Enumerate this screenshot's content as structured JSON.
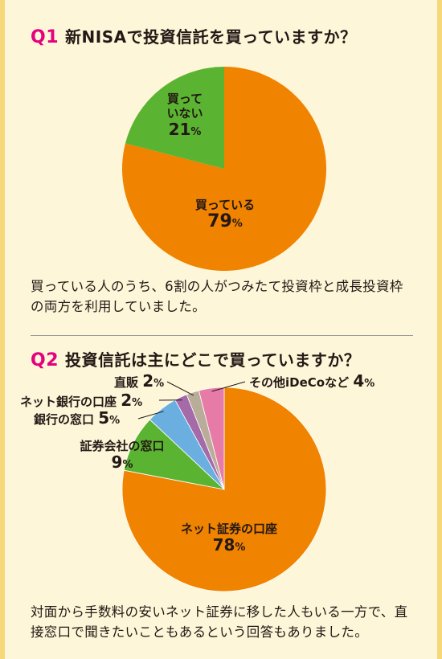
{
  "q1": {
    "number": "Q1",
    "question": "新NISAで投資信託を買っていますか？",
    "note": "買っている人のうち、6割の人がつみたて投資枠と成長投資枠の両方を利用していました。"
  },
  "q2": {
    "number": "Q2",
    "question": "投資信託は主にどこで買っていますか？",
    "note": "対面から手数料の安いネット証券に移した人もいる一方で、直接窓口で聞きたいこともあるという回答もありました。"
  },
  "chart_data": [
    {
      "type": "pie",
      "categories": [
        "買っている",
        "買っていない"
      ],
      "values": [
        79,
        21
      ],
      "labels": [
        {
          "lines": [
            "買っている"
          ],
          "value": "79",
          "unit": "%"
        },
        {
          "lines": [
            "買って",
            "いない"
          ],
          "value": "21",
          "unit": "%"
        }
      ],
      "colors": [
        "#f08300",
        "#5bb431"
      ]
    },
    {
      "type": "pie",
      "categories": [
        "ネット証券の口座",
        "証券会社の窓口",
        "銀行の窓口",
        "ネット銀行の口座",
        "直販",
        "その他iDeCoなど"
      ],
      "values": [
        78,
        9,
        5,
        2,
        2,
        4
      ],
      "labels": [
        {
          "lines": [
            "ネット証券の口座"
          ],
          "value": "78",
          "unit": "%"
        },
        {
          "lines": [
            "証券会社の窓口"
          ],
          "value": "9",
          "unit": "%"
        },
        {
          "lines": [
            "銀行の窓口"
          ],
          "value": "5",
          "unit": "%"
        },
        {
          "lines": [
            "ネット銀行の口座"
          ],
          "value": "2",
          "unit": "%"
        },
        {
          "lines": [
            "直販"
          ],
          "value": "2",
          "unit": "%"
        },
        {
          "lines": [
            "その他iDeCoなど"
          ],
          "value": "4",
          "unit": "%"
        }
      ],
      "colors": [
        "#f08300",
        "#5bb431",
        "#6aafe0",
        "#a56aa8",
        "#b9ad9a",
        "#e77ba7"
      ]
    }
  ]
}
